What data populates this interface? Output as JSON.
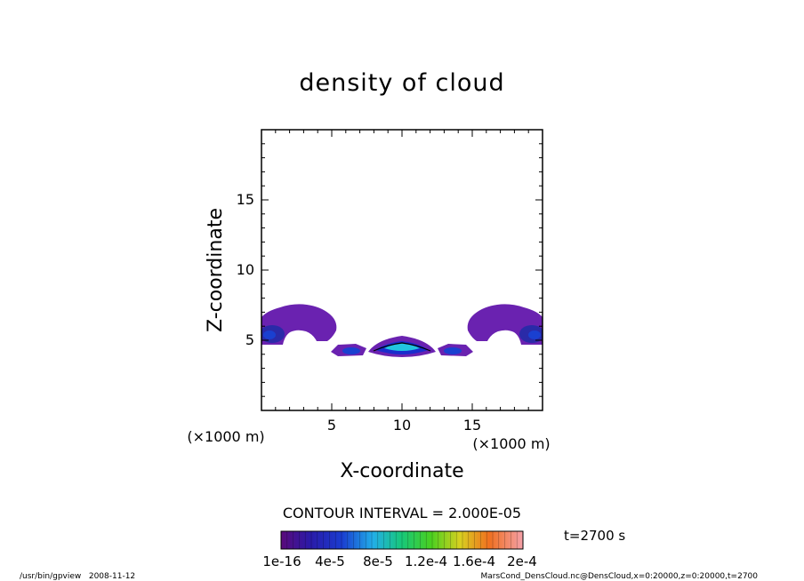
{
  "chart_data": {
    "type": "contour",
    "title": "density of cloud",
    "xlabel": "X-coordinate",
    "ylabel": "Z-coordinate",
    "x_unit": "(×1000 m)",
    "z_unit": "(×1000 m)",
    "xlim": [
      0,
      20
    ],
    "ylim": [
      0,
      20
    ],
    "x_ticks": [
      "5",
      "10",
      "15"
    ],
    "y_ticks": [
      "5",
      "10",
      "15"
    ],
    "contour_interval_text": "CONTOUR INTERVAL = 2.000E-05",
    "time_text": "t=2700 s",
    "colorbar_labels": [
      "1e-16",
      "4e-5",
      "8e-5",
      "1.2e-4",
      "1.6e-4",
      "2e-4"
    ],
    "colorbar_range": [
      1e-16,
      0.0002
    ],
    "features": [
      {
        "name": "left-arch",
        "x_range": [
          0,
          5.5
        ],
        "z_range": [
          4.8,
          7.5
        ],
        "peak_x": 3.0
      },
      {
        "name": "center-low-left",
        "x_range": [
          5.5,
          7.5
        ],
        "z_range": [
          4.0,
          4.8
        ]
      },
      {
        "name": "center-core",
        "x_range": [
          8.0,
          12.0
        ],
        "z_range": [
          4.0,
          5.2
        ]
      },
      {
        "name": "center-low-right",
        "x_range": [
          12.5,
          14.5
        ],
        "z_range": [
          4.0,
          4.8
        ]
      },
      {
        "name": "right-arch",
        "x_range": [
          14.5,
          20
        ],
        "z_range": [
          4.8,
          7.5
        ],
        "peak_x": 17.0
      }
    ]
  },
  "footer": {
    "left": "/usr/bin/gpview   2008-11-12",
    "right": "MarsCond_DensCloud.nc@DensCloud,x=0:20000,z=0:20000,t=2700"
  },
  "colors": {
    "low": "#5a16a0",
    "mid_blue": "#1a2ccc",
    "cyan": "#22c4e0",
    "frame": "#000000"
  }
}
